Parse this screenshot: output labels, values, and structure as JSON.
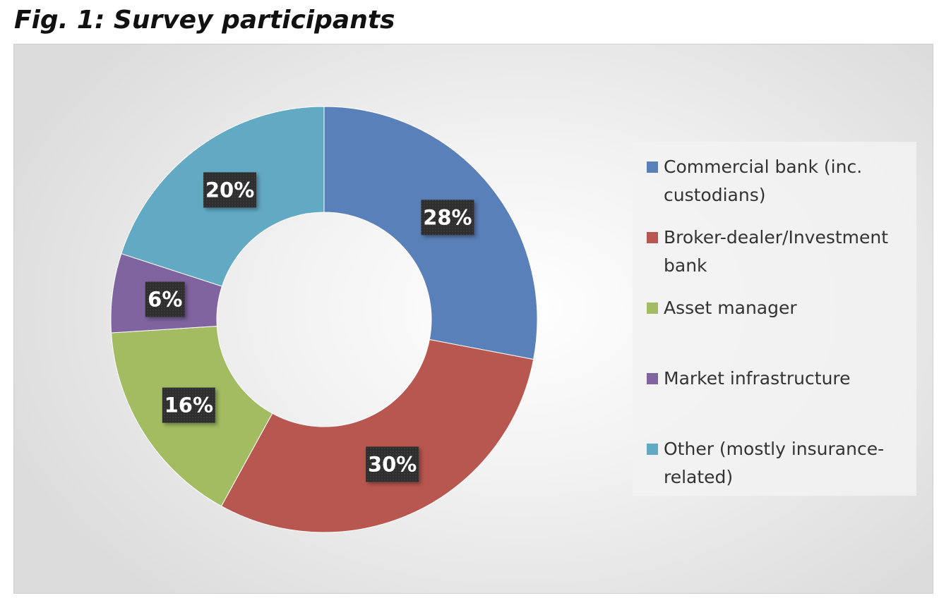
{
  "figure": {
    "title": "Fig. 1: Survey participants"
  },
  "chart_data": {
    "type": "pie",
    "donut": true,
    "categories": [
      "Commercial bank (inc. custodians)",
      "Broker-dealer/Investment bank",
      "Asset manager",
      "Market infrastructure",
      "Other (mostly insurance-related)"
    ],
    "values": [
      28,
      30,
      16,
      6,
      20
    ],
    "data_labels": [
      "28%",
      "30%",
      "16%",
      "6%",
      "20%"
    ],
    "colors": [
      "#5a80b9",
      "#b8574f",
      "#a3bc62",
      "#7f64a0",
      "#62aac4"
    ],
    "legend_position": "right",
    "legend": [
      {
        "lines": [
          "Commercial bank (inc.",
          "custodians)"
        ]
      },
      {
        "lines": [
          "Broker-dealer/Investment",
          "bank"
        ]
      },
      {
        "lines": [
          "Asset manager"
        ]
      },
      {
        "lines": [
          "Market infrastructure"
        ]
      },
      {
        "lines": [
          "Other (mostly insurance-",
          "related)"
        ]
      }
    ]
  }
}
